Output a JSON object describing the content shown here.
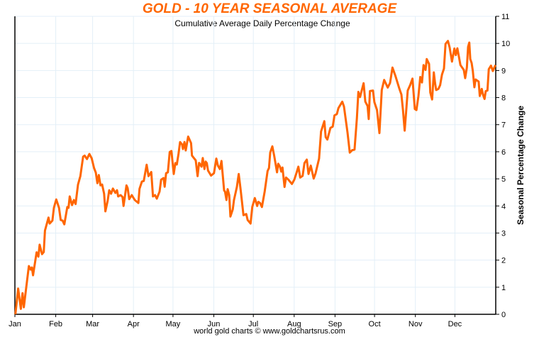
{
  "chart_data": {
    "type": "line",
    "title": "GOLD - 10 YEAR SEASONAL AVERAGE",
    "subtitle": "Cumulative Average Daily Percentage Change",
    "xlabel": "",
    "ylabel": "Seasonal Percentage Change",
    "footer": "world gold charts © www.goldchartsrus.com",
    "x_unit": "day of year",
    "xlim": [
      0,
      365
    ],
    "ylim": [
      0,
      11
    ],
    "y_axis_side": "right",
    "grid": true,
    "legend": "none",
    "line_color": "#ff6600",
    "grid_color": "#e3eff8",
    "x_ticks": [
      {
        "label": "Jan",
        "day": 0
      },
      {
        "label": "Feb",
        "day": 31
      },
      {
        "label": "Mar",
        "day": 59
      },
      {
        "label": "Apr",
        "day": 90
      },
      {
        "label": "May",
        "day": 120
      },
      {
        "label": "Jun",
        "day": 151
      },
      {
        "label": "Jul",
        "day": 181
      },
      {
        "label": "Aug",
        "day": 212
      },
      {
        "label": "Sep",
        "day": 243
      },
      {
        "label": "Oct",
        "day": 273
      },
      {
        "label": "Nov",
        "day": 304
      },
      {
        "label": "Dec",
        "day": 334
      }
    ],
    "y_ticks": [
      "0",
      "1",
      "2",
      "3",
      "4",
      "5",
      "6",
      "7",
      "8",
      "9",
      "10",
      "11"
    ],
    "series": [
      {
        "points": [
          [
            0.4,
            0
          ],
          [
            2.5,
            0.95
          ],
          [
            4.5,
            0.2
          ],
          [
            5.8,
            0.78
          ],
          [
            6.8,
            0.26
          ],
          [
            8.5,
            0.95
          ],
          [
            10.6,
            1.78
          ],
          [
            12,
            1.65
          ],
          [
            12.9,
            1.73
          ],
          [
            13.8,
            1.44
          ],
          [
            16.5,
            2.29
          ],
          [
            17.8,
            2.13
          ],
          [
            18.8,
            2.57
          ],
          [
            20.6,
            2.22
          ],
          [
            21.9,
            2.3
          ],
          [
            22.8,
            3.09
          ],
          [
            25.5,
            3.57
          ],
          [
            26.4,
            3.35
          ],
          [
            28.5,
            3.46
          ],
          [
            29.6,
            3.93
          ],
          [
            31.4,
            4.24
          ],
          [
            33.5,
            3.93
          ],
          [
            34.8,
            3.48
          ],
          [
            36.2,
            3.46
          ],
          [
            37.5,
            3.32
          ],
          [
            39.8,
            3.96
          ],
          [
            40.7,
            3.93
          ],
          [
            41.6,
            4.35
          ],
          [
            43.4,
            4.03
          ],
          [
            44.8,
            4.22
          ],
          [
            46.1,
            4.07
          ],
          [
            47.9,
            4.79
          ],
          [
            49.7,
            5.1
          ],
          [
            51.8,
            5.82
          ],
          [
            52.9,
            5.86
          ],
          [
            54.7,
            5.73
          ],
          [
            56.5,
            5.92
          ],
          [
            58.3,
            5.76
          ],
          [
            60.1,
            5.4
          ],
          [
            61.4,
            5.23
          ],
          [
            62.6,
            4.84
          ],
          [
            63.7,
            5.14
          ],
          [
            65,
            4.76
          ],
          [
            66.2,
            4.79
          ],
          [
            67.7,
            4.45
          ],
          [
            68.7,
            3.8
          ],
          [
            70.4,
            4.19
          ],
          [
            71.6,
            4.58
          ],
          [
            73,
            4.45
          ],
          [
            74.4,
            4.64
          ],
          [
            76.3,
            4.48
          ],
          [
            77.5,
            4.58
          ],
          [
            78.4,
            4.35
          ],
          [
            80.2,
            4.4
          ],
          [
            81.7,
            4.33
          ],
          [
            82.5,
            4.0
          ],
          [
            84.7,
            4.76
          ],
          [
            85.6,
            4.66
          ],
          [
            86.8,
            4.25
          ],
          [
            88.7,
            4.4
          ],
          [
            91,
            4.22
          ],
          [
            93.7,
            4.11
          ],
          [
            94.6,
            4.63
          ],
          [
            96.4,
            4.9
          ],
          [
            97.8,
            4.92
          ],
          [
            100,
            5.52
          ],
          [
            101.4,
            5.1
          ],
          [
            103.5,
            5.25
          ],
          [
            104.8,
            4.35
          ],
          [
            106.4,
            4.4
          ],
          [
            107.7,
            4.27
          ],
          [
            109.8,
            4.53
          ],
          [
            111,
            4.97
          ],
          [
            112.9,
            5.03
          ],
          [
            113.7,
            4.71
          ],
          [
            114.8,
            5.21
          ],
          [
            116.1,
            5.24
          ],
          [
            117.5,
            5.99
          ],
          [
            118.8,
            6.03
          ],
          [
            120.6,
            5.18
          ],
          [
            121.8,
            5.58
          ],
          [
            122.9,
            5.53
          ],
          [
            124.2,
            5.92
          ],
          [
            125.4,
            6.36
          ],
          [
            126.9,
            6.27
          ],
          [
            127.6,
            6.1
          ],
          [
            128.7,
            6.36
          ],
          [
            129.7,
            6.05
          ],
          [
            131.5,
            6.56
          ],
          [
            133.7,
            6.32
          ],
          [
            134.4,
            5.86
          ],
          [
            137.3,
            5.68
          ],
          [
            138.7,
            5.1
          ],
          [
            139.8,
            5.59
          ],
          [
            141.7,
            5.45
          ],
          [
            142.6,
            5.77
          ],
          [
            143.9,
            5.36
          ],
          [
            144.8,
            5.64
          ],
          [
            145.7,
            5.58
          ],
          [
            146.6,
            5.31
          ],
          [
            148.9,
            5.12
          ],
          [
            151.1,
            5.21
          ],
          [
            152.9,
            5.75
          ],
          [
            154.1,
            5.49
          ],
          [
            155.6,
            5.36
          ],
          [
            156.8,
            5.66
          ],
          [
            158.8,
            4.57
          ],
          [
            159.5,
            4.53
          ],
          [
            160.6,
            4.22
          ],
          [
            161.5,
            4.62
          ],
          [
            162.7,
            4.4
          ],
          [
            163.6,
            3.61
          ],
          [
            165.4,
            3.87
          ],
          [
            166.3,
            4.22
          ],
          [
            168.5,
            4.7
          ],
          [
            169.9,
            5.18
          ],
          [
            171.3,
            4.62
          ],
          [
            173.5,
            3.66
          ],
          [
            175.6,
            3.7
          ],
          [
            176.7,
            3.48
          ],
          [
            178.9,
            3.35
          ],
          [
            180.2,
            3.96
          ],
          [
            182.1,
            4.29
          ],
          [
            183.9,
            4.0
          ],
          [
            184.8,
            4.15
          ],
          [
            186.1,
            4.11
          ],
          [
            187.5,
            3.96
          ],
          [
            189.6,
            4.53
          ],
          [
            191.8,
            5.29
          ],
          [
            192.9,
            5.4
          ],
          [
            193.8,
            5.97
          ],
          [
            195.4,
            6.2
          ],
          [
            196.9,
            5.84
          ],
          [
            199,
            5.24
          ],
          [
            199.9,
            5.56
          ],
          [
            201.2,
            5.45
          ],
          [
            202.2,
            5.27
          ],
          [
            203.1,
            5.42
          ],
          [
            204.7,
            4.7
          ],
          [
            205.8,
            5.05
          ],
          [
            207.6,
            4.97
          ],
          [
            210.3,
            4.81
          ],
          [
            212.1,
            4.97
          ],
          [
            213.5,
            5.18
          ],
          [
            215.2,
            5.45
          ],
          [
            216.6,
            5.05
          ],
          [
            218.4,
            5.11
          ],
          [
            219.8,
            5.58
          ],
          [
            221.6,
            5.71
          ],
          [
            222.9,
            5.18
          ],
          [
            224.6,
            5.49
          ],
          [
            226.8,
            5.01
          ],
          [
            228.2,
            5.2
          ],
          [
            230.9,
            5.75
          ],
          [
            232.4,
            6.75
          ],
          [
            234.9,
            7.13
          ],
          [
            235.9,
            6.54
          ],
          [
            237.2,
            6.45
          ],
          [
            239.5,
            6.88
          ],
          [
            241.3,
            6.93
          ],
          [
            242.6,
            7.34
          ],
          [
            244.4,
            7.39
          ],
          [
            245.6,
            7.61
          ],
          [
            248.5,
            7.85
          ],
          [
            249.8,
            7.67
          ],
          [
            252.5,
            6.71
          ],
          [
            254.2,
            5.97
          ],
          [
            256.1,
            6.06
          ],
          [
            257.8,
            6.08
          ],
          [
            259.6,
            7.23
          ],
          [
            260.7,
            8.21
          ],
          [
            262,
            8.02
          ],
          [
            262.9,
            8.19
          ],
          [
            264.7,
            8.53
          ],
          [
            266,
            7.85
          ],
          [
            267.7,
            7.69
          ],
          [
            268.6,
            7.21
          ],
          [
            269.5,
            8.24
          ],
          [
            271.8,
            8.26
          ],
          [
            272.9,
            7.83
          ],
          [
            274.9,
            7.54
          ],
          [
            276.7,
            6.69
          ],
          [
            278.5,
            8.28
          ],
          [
            280.3,
            8.65
          ],
          [
            283,
            8.37
          ],
          [
            284.8,
            8.54
          ],
          [
            286.6,
            9.11
          ],
          [
            288.7,
            8.82
          ],
          [
            291.9,
            8.32
          ],
          [
            293.4,
            8.11
          ],
          [
            294.6,
            7.54
          ],
          [
            295.9,
            6.78
          ],
          [
            297,
            7.5
          ],
          [
            298.2,
            8.26
          ],
          [
            300,
            8.46
          ],
          [
            301.8,
            8.7
          ],
          [
            303.6,
            7.58
          ],
          [
            304.8,
            7.54
          ],
          [
            306.3,
            8.06
          ],
          [
            307.7,
            8.76
          ],
          [
            309,
            8.56
          ],
          [
            310.2,
            9.2
          ],
          [
            311.7,
            9.02
          ],
          [
            312.6,
            9.42
          ],
          [
            314.4,
            9.24
          ],
          [
            315.3,
            8.19
          ],
          [
            316.7,
            7.93
          ],
          [
            318,
            8.93
          ],
          [
            318.9,
            8.54
          ],
          [
            319.8,
            8.28
          ],
          [
            321.5,
            8.32
          ],
          [
            322.8,
            8.46
          ],
          [
            324.2,
            8.85
          ],
          [
            325.7,
            9.07
          ],
          [
            326.9,
            9.98
          ],
          [
            328.7,
            10.09
          ],
          [
            330,
            9.85
          ],
          [
            331.8,
            9.33
          ],
          [
            333.6,
            9.81
          ],
          [
            334.7,
            9.57
          ],
          [
            335.9,
            9.82
          ],
          [
            338.2,
            9.2
          ],
          [
            340.8,
            9.02
          ],
          [
            341.8,
            8.72
          ],
          [
            343.1,
            9.11
          ],
          [
            344,
            9.87
          ],
          [
            344.9,
            10.03
          ],
          [
            345.7,
            9.42
          ],
          [
            346.7,
            9.28
          ],
          [
            347.6,
            8.98
          ],
          [
            348.8,
            8.38
          ],
          [
            349.7,
            8.67
          ],
          [
            352,
            8.59
          ],
          [
            352.9,
            8.06
          ],
          [
            354.4,
            8.32
          ],
          [
            355.3,
            8.11
          ],
          [
            356.5,
            7.95
          ],
          [
            357.4,
            8.24
          ],
          [
            358.7,
            8.26
          ],
          [
            359.7,
            9.05
          ],
          [
            361.4,
            9.18
          ],
          [
            362.8,
            8.98
          ],
          [
            364.8,
            9.2
          ]
        ]
      }
    ]
  }
}
